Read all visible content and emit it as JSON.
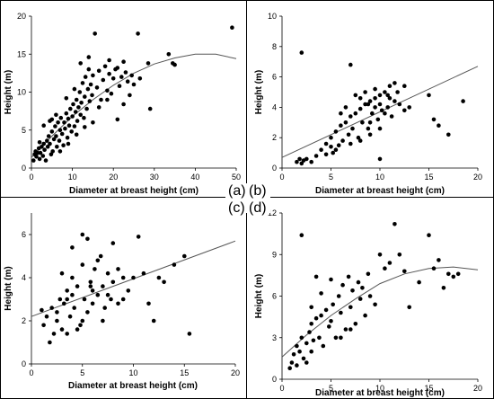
{
  "panel_labels": [
    "(a)",
    "(b)",
    "(c)",
    "(d)"
  ],
  "chart_data": [
    {
      "type": "scatter",
      "panel": "(a)",
      "xlabel": "Diameter at breast height (cm)",
      "ylabel": "Height (m)",
      "xlim": [
        0,
        50
      ],
      "ylim": [
        0,
        20
      ],
      "xticks": [
        0,
        10,
        20,
        30,
        40,
        50
      ],
      "yticks": [
        0,
        5,
        10,
        15,
        20
      ],
      "grid": false,
      "points": [
        [
          0.5,
          1.0
        ],
        [
          0.8,
          1.8
        ],
        [
          1.0,
          2.2
        ],
        [
          1.2,
          1.5
        ],
        [
          1.5,
          2.0
        ],
        [
          1.8,
          2.6
        ],
        [
          2.0,
          1.2
        ],
        [
          2.2,
          2.0
        ],
        [
          2.5,
          2.8
        ],
        [
          2.8,
          1.6
        ],
        [
          3.0,
          3.2
        ],
        [
          3.2,
          2.4
        ],
        [
          3.5,
          1.0
        ],
        [
          3.8,
          3.6
        ],
        [
          4.0,
          2.8
        ],
        [
          4.2,
          4.2
        ],
        [
          4.5,
          3.2
        ],
        [
          4.8,
          1.8
        ],
        [
          5.0,
          4.8
        ],
        [
          5.2,
          2.2
        ],
        [
          5.5,
          3.8
        ],
        [
          5.8,
          5.5
        ],
        [
          6.0,
          4.2
        ],
        [
          6.2,
          2.8
        ],
        [
          6.5,
          6.0
        ],
        [
          6.8,
          3.6
        ],
        [
          7.0,
          5.0
        ],
        [
          7.2,
          6.6
        ],
        [
          7.5,
          4.5
        ],
        [
          7.8,
          3.0
        ],
        [
          8.0,
          6.0
        ],
        [
          8.2,
          5.2
        ],
        [
          8.5,
          7.2
        ],
        [
          8.8,
          4.0
        ],
        [
          9.0,
          6.5
        ],
        [
          9.2,
          5.6
        ],
        [
          9.5,
          7.8
        ],
        [
          9.8,
          4.8
        ],
        [
          10.0,
          6.8
        ],
        [
          10.2,
          8.4
        ],
        [
          10.5,
          5.5
        ],
        [
          10.8,
          7.4
        ],
        [
          11.0,
          9.0
        ],
        [
          11.2,
          6.2
        ],
        [
          11.5,
          8.0
        ],
        [
          11.8,
          10.0
        ],
        [
          12.0,
          7.0
        ],
        [
          12.2,
          8.6
        ],
        [
          12.5,
          11.2
        ],
        [
          12.8,
          6.6
        ],
        [
          13.0,
          9.4
        ],
        [
          13.2,
          12.0
        ],
        [
          13.5,
          7.8
        ],
        [
          13.8,
          10.4
        ],
        [
          14.0,
          13.0
        ],
        [
          14.2,
          8.8
        ],
        [
          14.5,
          11.0
        ],
        [
          14.8,
          9.6
        ],
        [
          15.0,
          12.2
        ],
        [
          15.5,
          17.7
        ],
        [
          16.0,
          10.6
        ],
        [
          16.5,
          12.8
        ],
        [
          17.0,
          9.0
        ],
        [
          17.5,
          11.6
        ],
        [
          18.0,
          13.4
        ],
        [
          18.5,
          10.2
        ],
        [
          19.0,
          12.4
        ],
        [
          19.5,
          9.8
        ],
        [
          20.0,
          11.8
        ],
        [
          20.5,
          13.0
        ],
        [
          21.0,
          6.4
        ],
        [
          21.5,
          10.8
        ],
        [
          22.0,
          12.0
        ],
        [
          22.5,
          8.4
        ],
        [
          23.0,
          12.6
        ],
        [
          23.5,
          11.4
        ],
        [
          24.0,
          9.6
        ],
        [
          24.5,
          12.2
        ],
        [
          25.0,
          11.0
        ],
        [
          26.0,
          17.7
        ],
        [
          26.5,
          11.8
        ],
        [
          28.5,
          13.8
        ],
        [
          29.0,
          7.8
        ],
        [
          33.5,
          15.0
        ],
        [
          34.5,
          13.8
        ],
        [
          35.0,
          13.6
        ],
        [
          49.0,
          18.5
        ],
        [
          3.0,
          5.6
        ],
        [
          4.5,
          6.2
        ],
        [
          6.0,
          7.0
        ],
        [
          2.0,
          3.4
        ],
        [
          9.0,
          3.2
        ],
        [
          11.0,
          4.4
        ],
        [
          13.0,
          5.4
        ],
        [
          15.0,
          6.0
        ],
        [
          5.0,
          6.4
        ],
        [
          7.0,
          2.2
        ],
        [
          8.5,
          9.2
        ],
        [
          10.5,
          10.4
        ],
        [
          12.0,
          13.8
        ],
        [
          14.0,
          14.6
        ],
        [
          16.5,
          8.0
        ],
        [
          18.5,
          9.0
        ],
        [
          19.0,
          14.2
        ],
        [
          21.0,
          13.2
        ],
        [
          22.5,
          14.0
        ]
      ],
      "trend": {
        "type": "polynomial",
        "x": [
          0,
          5,
          10,
          15,
          20,
          25,
          30,
          35,
          40,
          45,
          50
        ],
        "y": [
          1.4,
          4.2,
          6.8,
          9.0,
          10.9,
          12.5,
          13.7,
          14.5,
          15.0,
          15.0,
          14.4
        ]
      }
    },
    {
      "type": "scatter",
      "panel": "(b)",
      "xlabel": "Diameter at breast height (cm)",
      "ylabel": "Height (m)",
      "xlim": [
        0,
        20
      ],
      "ylim": [
        0,
        10
      ],
      "xticks": [
        0,
        5,
        10,
        15,
        20
      ],
      "yticks": [
        0,
        2,
        4,
        6,
        8,
        10
      ],
      "grid": false,
      "points": [
        [
          1.5,
          0.4
        ],
        [
          1.8,
          0.6
        ],
        [
          2.0,
          0.3
        ],
        [
          2.2,
          0.5
        ],
        [
          2.5,
          0.6
        ],
        [
          3.0,
          0.4
        ],
        [
          3.5,
          0.8
        ],
        [
          2.0,
          7.6
        ],
        [
          4.0,
          1.2
        ],
        [
          4.5,
          1.6
        ],
        [
          5.0,
          2.0
        ],
        [
          5.2,
          1.0
        ],
        [
          5.5,
          2.4
        ],
        [
          5.8,
          1.5
        ],
        [
          6.0,
          2.8
        ],
        [
          6.2,
          1.8
        ],
        [
          6.5,
          3.0
        ],
        [
          6.8,
          2.2
        ],
        [
          7.0,
          6.8
        ],
        [
          7.0,
          3.4
        ],
        [
          7.2,
          2.6
        ],
        [
          7.5,
          3.6
        ],
        [
          7.8,
          2.0
        ],
        [
          8.0,
          3.9
        ],
        [
          8.2,
          3.0
        ],
        [
          8.5,
          4.2
        ],
        [
          8.8,
          2.6
        ],
        [
          9.0,
          4.4
        ],
        [
          9.2,
          3.6
        ],
        [
          9.5,
          4.6
        ],
        [
          9.8,
          3.2
        ],
        [
          10.0,
          4.8
        ],
        [
          10.2,
          3.8
        ],
        [
          10.5,
          5.0
        ],
        [
          10.8,
          4.0
        ],
        [
          11.0,
          5.4
        ],
        [
          11.2,
          3.4
        ],
        [
          11.5,
          4.4
        ],
        [
          11.8,
          5.0
        ],
        [
          12.0,
          4.2
        ],
        [
          12.5,
          3.8
        ],
        [
          13.0,
          4.0
        ],
        [
          8.0,
          4.6
        ],
        [
          8.5,
          5.0
        ],
        [
          9.0,
          3.0
        ],
        [
          9.5,
          5.2
        ],
        [
          10.0,
          4.2
        ],
        [
          10.5,
          3.6
        ],
        [
          11.0,
          4.6
        ],
        [
          7.5,
          4.8
        ],
        [
          6.5,
          4.0
        ],
        [
          6.0,
          3.6
        ],
        [
          5.5,
          1.2
        ],
        [
          5.0,
          1.4
        ],
        [
          4.5,
          0.9
        ],
        [
          7.0,
          1.6
        ],
        [
          8.0,
          1.8
        ],
        [
          9.0,
          2.2
        ],
        [
          10.0,
          2.6
        ],
        [
          10.0,
          0.6
        ],
        [
          15.0,
          4.8
        ],
        [
          15.5,
          3.2
        ],
        [
          16.0,
          2.8
        ],
        [
          17.0,
          2.2
        ],
        [
          18.5,
          4.4
        ],
        [
          12.5,
          5.4
        ],
        [
          11.5,
          5.6
        ],
        [
          9.5,
          4.0
        ],
        [
          8.8,
          4.2
        ],
        [
          10.8,
          4.8
        ]
      ],
      "trend": {
        "type": "linear",
        "x": [
          0,
          20
        ],
        "y": [
          0.7,
          6.7
        ]
      }
    },
    {
      "type": "scatter",
      "panel": "(c)",
      "xlabel": "Diameter at breast height (cm)",
      "ylabel": "Height (m)",
      "xlim": [
        0,
        20
      ],
      "ylim": [
        0,
        7
      ],
      "xticks": [
        0,
        5,
        10,
        15,
        20
      ],
      "yticks": [
        0,
        2,
        4,
        6
      ],
      "grid": false,
      "points": [
        [
          1.0,
          2.5
        ],
        [
          1.2,
          1.8
        ],
        [
          1.5,
          2.2
        ],
        [
          1.8,
          1.0
        ],
        [
          2.0,
          2.6
        ],
        [
          2.2,
          1.4
        ],
        [
          2.5,
          2.0
        ],
        [
          2.8,
          3.0
        ],
        [
          3.0,
          1.6
        ],
        [
          3.2,
          2.8
        ],
        [
          3.5,
          3.4
        ],
        [
          3.8,
          2.2
        ],
        [
          4.0,
          5.4
        ],
        [
          4.0,
          4.0
        ],
        [
          4.2,
          2.6
        ],
        [
          4.5,
          3.6
        ],
        [
          4.8,
          1.8
        ],
        [
          5.0,
          6.0
        ],
        [
          5.0,
          4.6
        ],
        [
          5.2,
          3.0
        ],
        [
          5.5,
          5.8
        ],
        [
          5.5,
          2.4
        ],
        [
          5.8,
          3.8
        ],
        [
          6.0,
          2.8
        ],
        [
          6.2,
          4.4
        ],
        [
          6.5,
          3.2
        ],
        [
          6.8,
          5.0
        ],
        [
          7.0,
          3.6
        ],
        [
          7.2,
          2.6
        ],
        [
          7.5,
          4.2
        ],
        [
          7.8,
          3.0
        ],
        [
          8.0,
          5.6
        ],
        [
          8.0,
          3.8
        ],
        [
          8.5,
          2.8
        ],
        [
          9.0,
          4.0
        ],
        [
          9.5,
          3.4
        ],
        [
          10.0,
          4.0
        ],
        [
          10.5,
          5.9
        ],
        [
          11.0,
          4.2
        ],
        [
          11.5,
          2.8
        ],
        [
          12.0,
          2.0
        ],
        [
          12.5,
          4.0
        ],
        [
          13.0,
          3.8
        ],
        [
          14.0,
          4.6
        ],
        [
          15.0,
          5.0
        ],
        [
          15.5,
          1.4
        ],
        [
          3.0,
          4.2
        ],
        [
          3.5,
          3.0
        ],
        [
          6.0,
          3.4
        ],
        [
          6.5,
          4.8
        ],
        [
          7.0,
          2.0
        ],
        [
          8.5,
          4.4
        ],
        [
          9.0,
          3.0
        ],
        [
          4.5,
          1.6
        ],
        [
          5.0,
          2.0
        ],
        [
          2.5,
          2.4
        ],
        [
          3.5,
          1.4
        ],
        [
          4.0,
          3.2
        ],
        [
          5.8,
          3.6
        ],
        [
          7.5,
          3.2
        ]
      ],
      "trend": {
        "type": "linear",
        "x": [
          0,
          20
        ],
        "y": [
          2.2,
          5.7
        ]
      }
    },
    {
      "type": "scatter",
      "panel": "(d)",
      "xlabel": "Diameter at breast height (cm)",
      "ylabel": "Height (m)",
      "xlim": [
        0,
        20
      ],
      "ylim": [
        0,
        12
      ],
      "xticks": [
        0,
        5,
        10,
        15,
        20
      ],
      "yticks": [
        0,
        3,
        6,
        9,
        12
      ],
      "grid": false,
      "points": [
        [
          0.8,
          0.8
        ],
        [
          1.0,
          1.2
        ],
        [
          1.2,
          1.8
        ],
        [
          1.5,
          2.4
        ],
        [
          1.5,
          1.0
        ],
        [
          1.8,
          2.0
        ],
        [
          2.0,
          10.4
        ],
        [
          2.0,
          3.0
        ],
        [
          2.2,
          1.5
        ],
        [
          2.5,
          2.6
        ],
        [
          2.8,
          3.4
        ],
        [
          3.0,
          2.0
        ],
        [
          3.0,
          4.0
        ],
        [
          3.2,
          2.8
        ],
        [
          3.5,
          4.4
        ],
        [
          3.5,
          7.4
        ],
        [
          3.8,
          3.0
        ],
        [
          4.0,
          4.6
        ],
        [
          4.2,
          2.4
        ],
        [
          4.5,
          5.0
        ],
        [
          4.8,
          3.8
        ],
        [
          5.0,
          7.2
        ],
        [
          5.0,
          4.2
        ],
        [
          5.2,
          5.4
        ],
        [
          5.5,
          3.0
        ],
        [
          5.8,
          6.0
        ],
        [
          6.0,
          4.8
        ],
        [
          6.2,
          6.8
        ],
        [
          6.5,
          3.6
        ],
        [
          6.8,
          7.4
        ],
        [
          7.0,
          5.2
        ],
        [
          7.2,
          6.4
        ],
        [
          7.5,
          4.0
        ],
        [
          7.8,
          7.0
        ],
        [
          8.0,
          5.8
        ],
        [
          8.2,
          6.6
        ],
        [
          8.5,
          4.6
        ],
        [
          8.8,
          7.6
        ],
        [
          9.0,
          6.0
        ],
        [
          9.5,
          5.4
        ],
        [
          10.0,
          9.0
        ],
        [
          10.5,
          8.0
        ],
        [
          11.0,
          8.4
        ],
        [
          11.5,
          11.2
        ],
        [
          12.0,
          9.0
        ],
        [
          12.5,
          7.8
        ],
        [
          13.0,
          5.2
        ],
        [
          14.0,
          7.0
        ],
        [
          15.0,
          10.4
        ],
        [
          15.5,
          8.0
        ],
        [
          16.0,
          8.6
        ],
        [
          16.5,
          6.6
        ],
        [
          17.0,
          7.6
        ],
        [
          17.5,
          7.4
        ],
        [
          18.0,
          7.6
        ],
        [
          4.0,
          6.2
        ],
        [
          6.0,
          3.0
        ],
        [
          7.0,
          3.6
        ],
        [
          3.0,
          5.2
        ],
        [
          2.5,
          1.2
        ]
      ],
      "trend": {
        "type": "polynomial",
        "x": [
          0,
          2.5,
          5,
          7.5,
          10,
          12.5,
          15,
          17.5,
          20
        ],
        "y": [
          1.6,
          3.2,
          4.6,
          5.8,
          6.9,
          7.6,
          8.0,
          8.1,
          7.9
        ]
      }
    }
  ]
}
